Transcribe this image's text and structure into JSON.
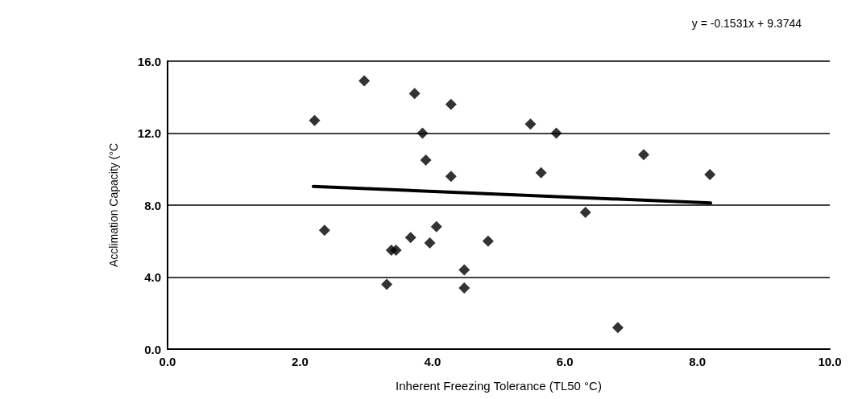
{
  "chart_data": {
    "type": "scatter",
    "xlabel": "Inherent Freezing Tolerance (TL50 °C)",
    "ylabel": "Acclimation Capacity (°C",
    "annotations": [
      "y = -0.1531x + 9.3744"
    ],
    "series": [
      {
        "color": "#000000",
        "marker": "diamond",
        "x": [
          2.22,
          2.97,
          3.73,
          4.28,
          3.85,
          3.9,
          4.28,
          2.37,
          3.31,
          3.38,
          3.45,
          3.67,
          3.96,
          4.06,
          4.48,
          4.48,
          4.84,
          5.48,
          5.87,
          5.64,
          7.19,
          8.19,
          6.31,
          6.8
        ],
        "values": [
          12.7,
          14.9,
          14.2,
          13.6,
          12.0,
          10.5,
          9.6,
          6.6,
          3.6,
          5.5,
          5.5,
          6.2,
          5.9,
          6.8,
          4.4,
          3.4,
          6.0,
          12.5,
          12.0,
          9.8,
          10.8,
          9.7,
          7.6,
          1.2
        ]
      },
      {
        "type": "line",
        "color": "#000000",
        "marker": "none",
        "x": [
          2.2,
          8.2
        ],
        "values": [
          9.04,
          8.12
        ]
      }
    ],
    "xlim": [
      0,
      10
    ],
    "ylim": [
      0,
      16
    ],
    "xticks": [
      {
        "value": 0,
        "label": "0.0"
      },
      {
        "value": 2,
        "label": "2.0"
      },
      {
        "value": 4,
        "label": "4.0"
      },
      {
        "value": 6,
        "label": "6.0"
      },
      {
        "value": 8,
        "label": "8.0"
      },
      {
        "value": 10,
        "label": "10.0"
      }
    ],
    "yticks": [
      {
        "value": 0,
        "label": "0.0"
      },
      {
        "value": 4,
        "label": "4.0"
      },
      {
        "value": 8,
        "label": "8.0"
      },
      {
        "value": 12,
        "label": "12.0"
      },
      {
        "value": 16,
        "label": "16.0"
      }
    ],
    "grid": "y"
  }
}
